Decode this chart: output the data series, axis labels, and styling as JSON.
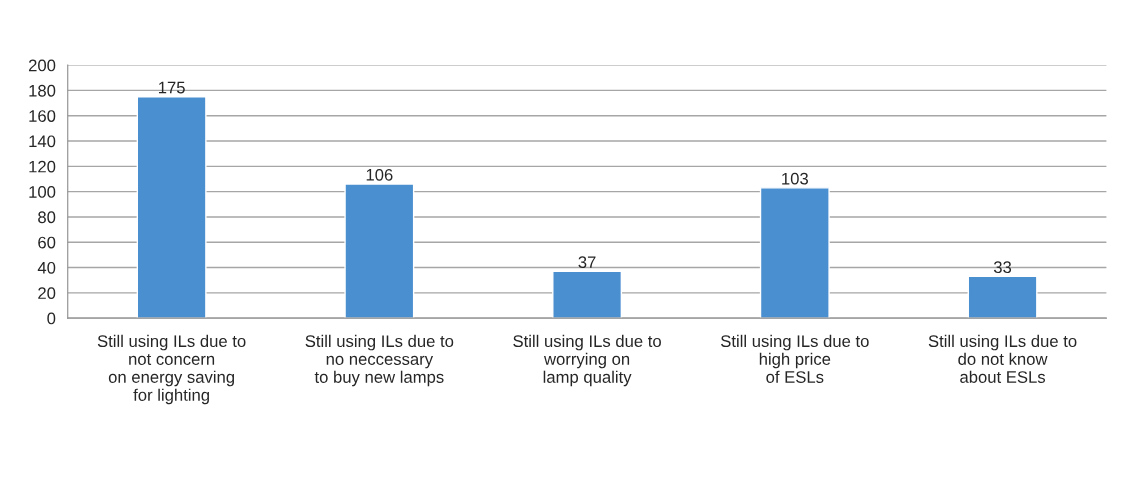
{
  "chart_data": {
    "type": "bar",
    "categories": [
      "Still using ILs due to\nnot concern\non energy saving\nfor lighting",
      "Still using ILs due to\nno neccessary\nto buy new lamps",
      "Still using ILs due to\nworrying on\nlamp quality",
      "Still using ILs due to\nhigh price\nof ESLs",
      "Still using ILs due to\ndo not know\nabout ESLs"
    ],
    "values": [
      175,
      106,
      37,
      103,
      33
    ],
    "color": "#4a8fd0",
    "ylim": [
      0,
      200
    ],
    "yticks": [
      0,
      20,
      40,
      60,
      80,
      100,
      120,
      140,
      160,
      180,
      200
    ],
    "grid": "y",
    "data_labels": true
  }
}
